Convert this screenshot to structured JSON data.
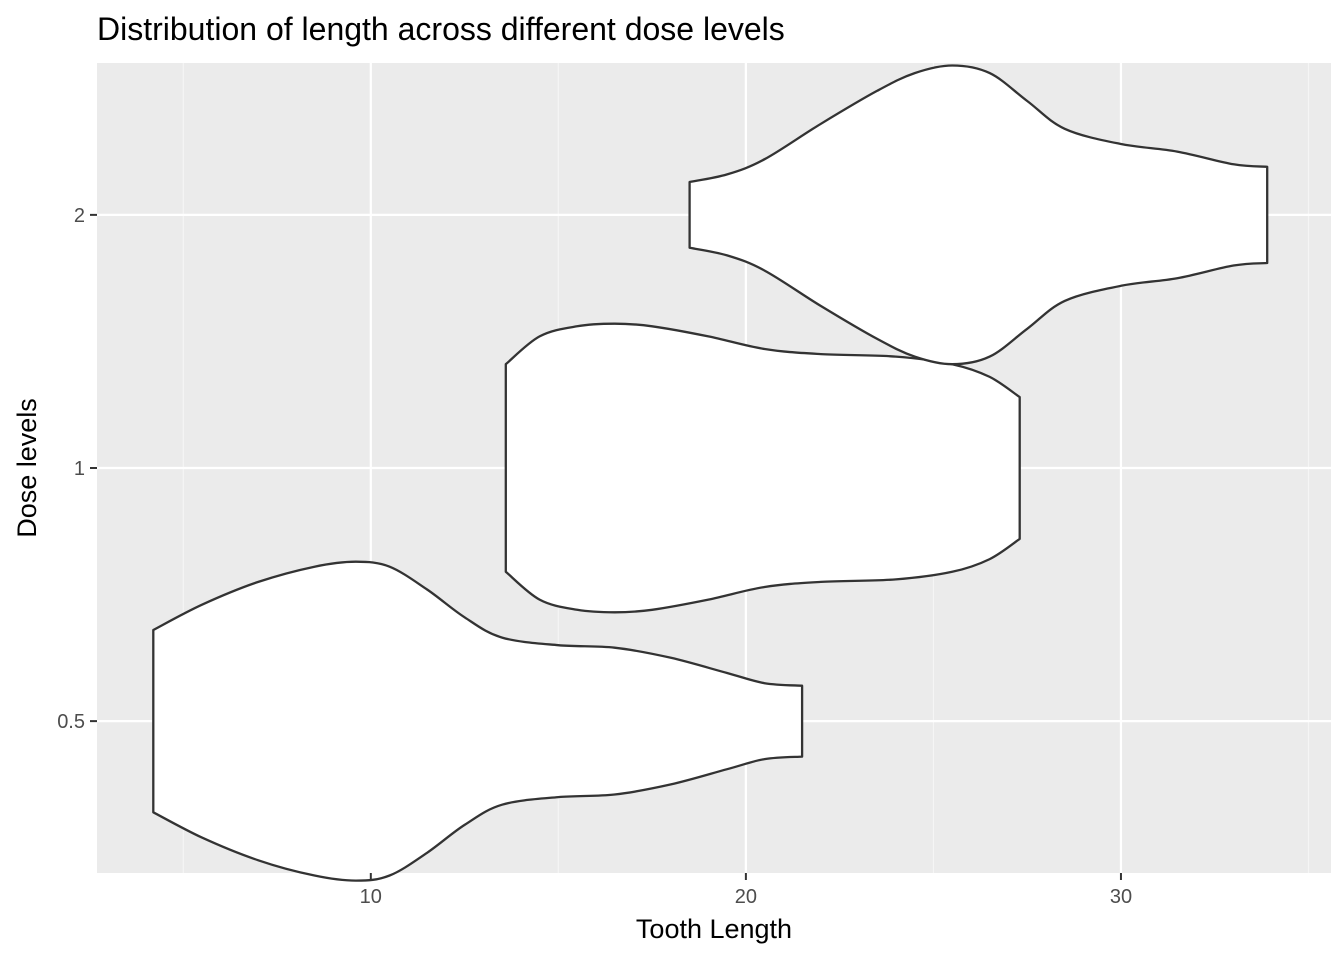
{
  "chart_data": {
    "type": "violin",
    "orientation": "horizontal",
    "title": "Distribution of length across different dose levels",
    "xlabel": "Tooth Length",
    "ylabel": "Dose levels",
    "xlim": [
      2.7,
      35.6
    ],
    "x_ticks": [
      10,
      20,
      30
    ],
    "x_tick_labels": [
      "10",
      "20",
      "30"
    ],
    "categories": [
      "0.5",
      "1",
      "2"
    ],
    "grid": true,
    "colors": {
      "panel_background": "#ebebeb",
      "grid_major": "#ffffff",
      "grid_minor": "#f5f5f5",
      "violin_fill": "#ffffff",
      "violin_outline": "#333333",
      "tick_label": "#4d4d4d"
    },
    "series": [
      {
        "category": "0.5",
        "range": [
          4.2,
          21.5
        ],
        "density": [
          [
            4.2,
            0.36
          ],
          [
            5.5,
            0.46
          ],
          [
            7.0,
            0.55
          ],
          [
            8.5,
            0.61
          ],
          [
            9.6,
            0.63
          ],
          [
            10.5,
            0.61
          ],
          [
            11.5,
            0.52
          ],
          [
            12.5,
            0.41
          ],
          [
            13.5,
            0.33
          ],
          [
            15.0,
            0.3
          ],
          [
            16.5,
            0.29
          ],
          [
            18.0,
            0.25
          ],
          [
            19.5,
            0.19
          ],
          [
            20.5,
            0.15
          ],
          [
            21.5,
            0.14
          ]
        ]
      },
      {
        "category": "1",
        "range": [
          13.6,
          27.3
        ],
        "density": [
          [
            13.6,
            0.41
          ],
          [
            14.5,
            0.52
          ],
          [
            15.5,
            0.56
          ],
          [
            16.5,
            0.57
          ],
          [
            17.5,
            0.56
          ],
          [
            19.0,
            0.52
          ],
          [
            20.5,
            0.47
          ],
          [
            22.0,
            0.45
          ],
          [
            24.0,
            0.44
          ],
          [
            25.5,
            0.41
          ],
          [
            26.5,
            0.36
          ],
          [
            27.3,
            0.28
          ]
        ]
      },
      {
        "category": "2",
        "range": [
          18.5,
          33.9
        ],
        "density": [
          [
            18.5,
            0.13
          ],
          [
            19.5,
            0.16
          ],
          [
            20.5,
            0.22
          ],
          [
            22.0,
            0.36
          ],
          [
            23.5,
            0.49
          ],
          [
            24.5,
            0.56
          ],
          [
            25.5,
            0.59
          ],
          [
            26.5,
            0.56
          ],
          [
            27.5,
            0.45
          ],
          [
            28.5,
            0.34
          ],
          [
            30.0,
            0.28
          ],
          [
            31.5,
            0.25
          ],
          [
            33.0,
            0.2
          ],
          [
            33.9,
            0.19
          ]
        ]
      }
    ]
  }
}
